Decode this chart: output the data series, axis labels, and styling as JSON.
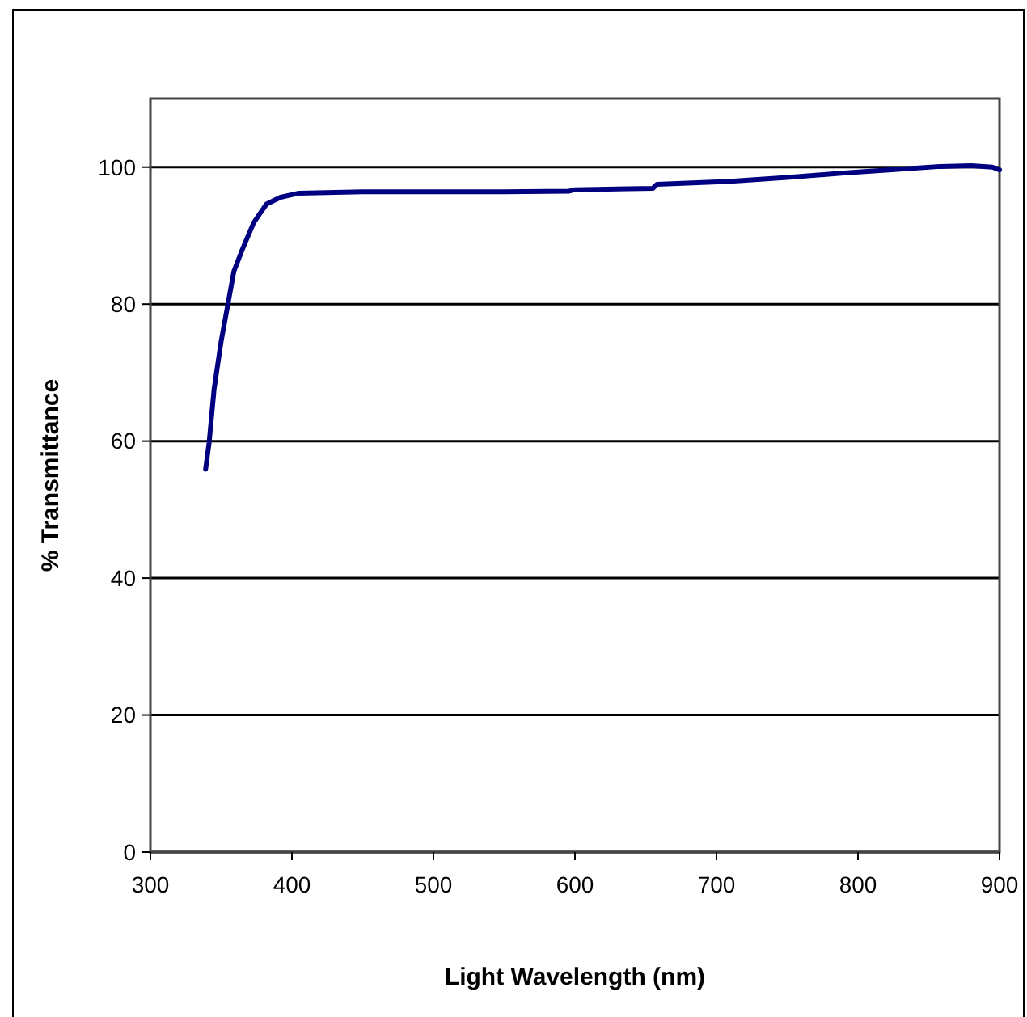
{
  "chart_data": {
    "type": "line",
    "xlabel": "Light Wavelength (nm)",
    "ylabel": "% Transmittance",
    "xlim": [
      300,
      900
    ],
    "xticks": [
      300,
      400,
      500,
      600,
      700,
      800,
      900
    ],
    "ylim": [
      0,
      110
    ],
    "yticks": [
      0,
      20,
      40,
      60,
      80,
      100
    ],
    "grid": "y",
    "marker": "none",
    "line_style": "solid",
    "series": [
      {
        "color": "#000080",
        "x": [
          339,
          341.5,
          345,
          350,
          354.5,
          359,
          365,
          373,
          382,
          392,
          405,
          450,
          500,
          550,
          596,
          600,
          655,
          658,
          708,
          750,
          788,
          830,
          858,
          880,
          895,
          900
        ],
        "values": [
          55.9,
          59.8,
          67.6,
          74.6,
          79.7,
          84.8,
          88,
          91.9,
          94.6,
          95.6,
          96.2,
          96.4,
          96.4,
          96.4,
          96.5,
          96.7,
          96.9,
          97.5,
          97.9,
          98.5,
          99.1,
          99.7,
          100.1,
          100.2,
          100.0,
          99.6
        ]
      }
    ]
  }
}
